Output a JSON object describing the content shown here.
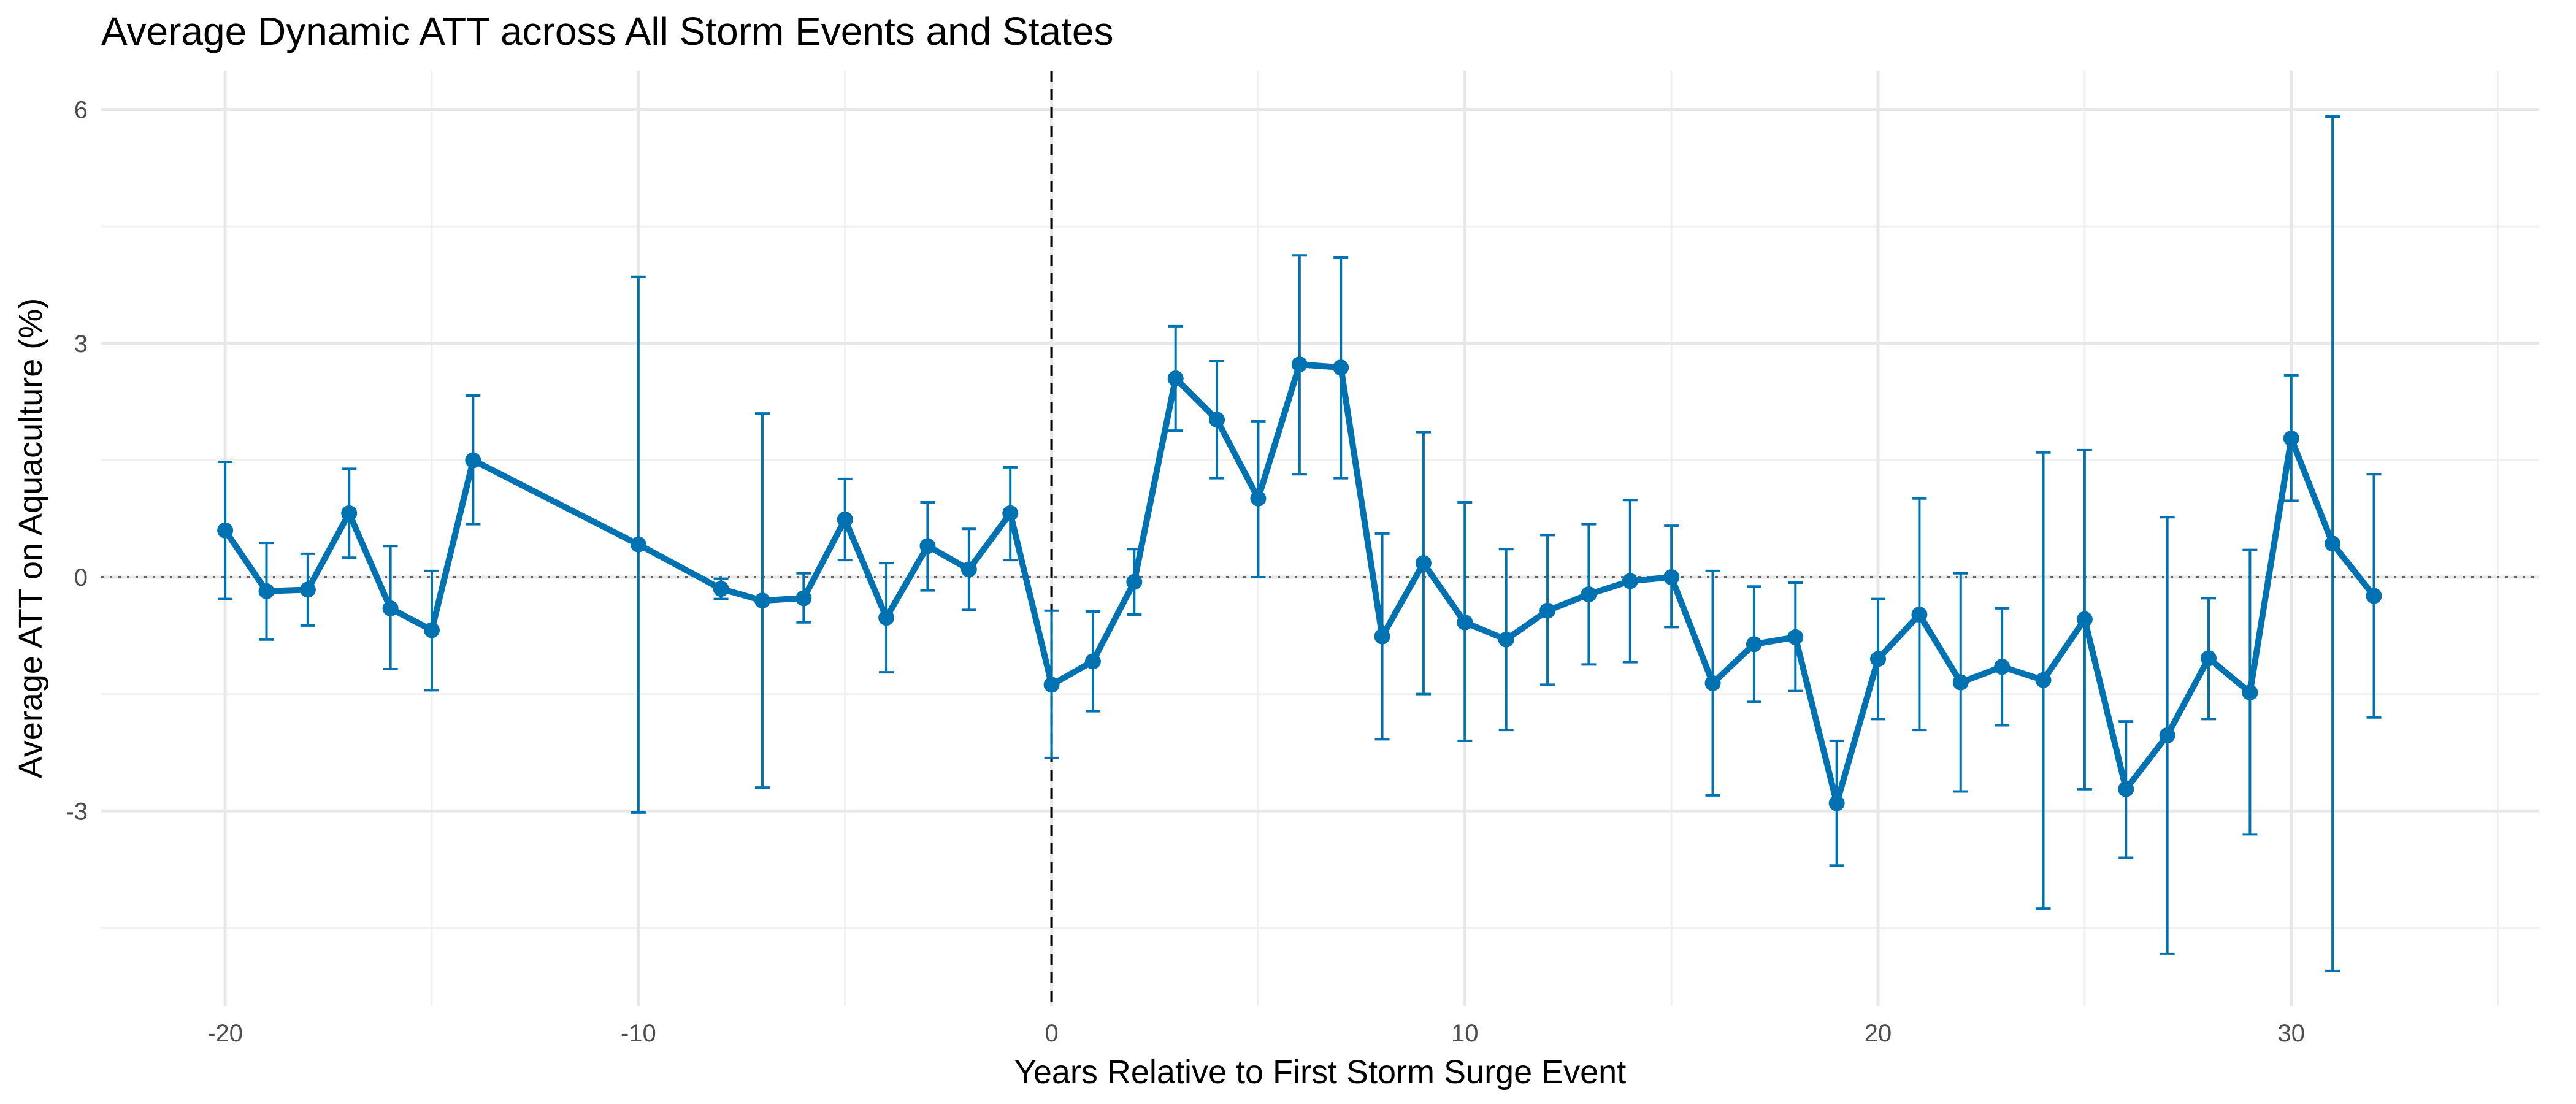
{
  "chart_data": {
    "type": "line",
    "title": "Average Dynamic ATT across All Storm Events and States",
    "xlabel": "Years Relative to First Storm Surge Event",
    "ylabel": "Average ATT on Aquaculture (%)",
    "xlim": [
      -23,
      36
    ],
    "ylim": [
      -5.5,
      6.5
    ],
    "x_ticks": [
      -20,
      -10,
      0,
      10,
      20,
      30
    ],
    "x_tick_labels": [
      "-20",
      "-10",
      "0",
      "10",
      "20",
      "30"
    ],
    "y_ticks": [
      6,
      3,
      0,
      -3
    ],
    "y_tick_labels": [
      "6",
      "3",
      "0",
      "-3"
    ],
    "grid": true,
    "series_color": "#0072B2",
    "reference_lines": [
      {
        "axis": "x",
        "value": 0,
        "style": "dashed",
        "color": "#000000"
      },
      {
        "axis": "y",
        "value": 0,
        "style": "dotted",
        "color": "#666666"
      }
    ],
    "points": [
      {
        "x": -20,
        "y": 0.6,
        "lo": -0.28,
        "hi": 1.48
      },
      {
        "x": -19,
        "y": -0.18,
        "lo": -0.8,
        "hi": 0.44
      },
      {
        "x": -18,
        "y": -0.16,
        "lo": -0.62,
        "hi": 0.3
      },
      {
        "x": -17,
        "y": 0.82,
        "lo": 0.25,
        "hi": 1.39
      },
      {
        "x": -16,
        "y": -0.4,
        "lo": -1.18,
        "hi": 0.4
      },
      {
        "x": -15,
        "y": -0.68,
        "lo": -1.45,
        "hi": 0.08
      },
      {
        "x": -14,
        "y": 1.5,
        "lo": 0.68,
        "hi": 2.33
      },
      {
        "x": -10,
        "y": 0.42,
        "lo": -3.02,
        "hi": 3.85
      },
      {
        "x": -8,
        "y": -0.15,
        "lo": -0.28,
        "hi": -0.02
      },
      {
        "x": -7,
        "y": -0.3,
        "lo": -2.7,
        "hi": 2.1
      },
      {
        "x": -6,
        "y": -0.27,
        "lo": -0.58,
        "hi": 0.05
      },
      {
        "x": -5,
        "y": 0.74,
        "lo": 0.22,
        "hi": 1.26
      },
      {
        "x": -4,
        "y": -0.52,
        "lo": -1.22,
        "hi": 0.18
      },
      {
        "x": -3,
        "y": 0.4,
        "lo": -0.17,
        "hi": 0.96
      },
      {
        "x": -2,
        "y": 0.1,
        "lo": -0.42,
        "hi": 0.62
      },
      {
        "x": -1,
        "y": 0.82,
        "lo": 0.22,
        "hi": 1.41
      },
      {
        "x": 0,
        "y": -1.38,
        "lo": -2.32,
        "hi": -0.43
      },
      {
        "x": 1,
        "y": -1.08,
        "lo": -1.72,
        "hi": -0.44
      },
      {
        "x": 2,
        "y": -0.06,
        "lo": -0.48,
        "hi": 0.36
      },
      {
        "x": 3,
        "y": 2.55,
        "lo": 1.88,
        "hi": 3.22
      },
      {
        "x": 4,
        "y": 2.02,
        "lo": 1.27,
        "hi": 2.77
      },
      {
        "x": 5,
        "y": 1.01,
        "lo": 0.0,
        "hi": 2.0
      },
      {
        "x": 6,
        "y": 2.73,
        "lo": 1.32,
        "hi": 4.13
      },
      {
        "x": 7,
        "y": 2.69,
        "lo": 1.27,
        "hi": 4.1
      },
      {
        "x": 8,
        "y": -0.76,
        "lo": -2.08,
        "hi": 0.56
      },
      {
        "x": 9,
        "y": 0.18,
        "lo": -1.5,
        "hi": 1.86
      },
      {
        "x": 10,
        "y": -0.58,
        "lo": -2.1,
        "hi": 0.96
      },
      {
        "x": 11,
        "y": -0.8,
        "lo": -1.96,
        "hi": 0.36
      },
      {
        "x": 12,
        "y": -0.43,
        "lo": -1.38,
        "hi": 0.54
      },
      {
        "x": 13,
        "y": -0.22,
        "lo": -1.12,
        "hi": 0.68
      },
      {
        "x": 14,
        "y": -0.05,
        "lo": -1.09,
        "hi": 0.99
      },
      {
        "x": 15,
        "y": 0.0,
        "lo": -0.64,
        "hi": 0.66
      },
      {
        "x": 16,
        "y": -1.36,
        "lo": -2.8,
        "hi": 0.08
      },
      {
        "x": 17,
        "y": -0.86,
        "lo": -1.6,
        "hi": -0.12
      },
      {
        "x": 18,
        "y": -0.77,
        "lo": -1.46,
        "hi": -0.07
      },
      {
        "x": 19,
        "y": -2.9,
        "lo": -3.7,
        "hi": -2.1
      },
      {
        "x": 20,
        "y": -1.05,
        "lo": -1.82,
        "hi": -0.28
      },
      {
        "x": 21,
        "y": -0.48,
        "lo": -1.96,
        "hi": 1.01
      },
      {
        "x": 22,
        "y": -1.35,
        "lo": -2.75,
        "hi": 0.05
      },
      {
        "x": 23,
        "y": -1.15,
        "lo": -1.9,
        "hi": -0.4
      },
      {
        "x": 24,
        "y": -1.32,
        "lo": -4.25,
        "hi": 1.6
      },
      {
        "x": 25,
        "y": -0.54,
        "lo": -2.72,
        "hi": 1.63
      },
      {
        "x": 26,
        "y": -2.72,
        "lo": -3.6,
        "hi": -1.85
      },
      {
        "x": 27,
        "y": -2.03,
        "lo": -4.83,
        "hi": 0.77
      },
      {
        "x": 28,
        "y": -1.04,
        "lo": -1.82,
        "hi": -0.27
      },
      {
        "x": 29,
        "y": -1.48,
        "lo": -3.3,
        "hi": 0.35
      },
      {
        "x": 30,
        "y": 1.78,
        "lo": 0.98,
        "hi": 2.59
      },
      {
        "x": 31,
        "y": 0.43,
        "lo": -5.05,
        "hi": 5.91
      },
      {
        "x": 32,
        "y": -0.24,
        "lo": -1.8,
        "hi": 1.32
      }
    ]
  }
}
